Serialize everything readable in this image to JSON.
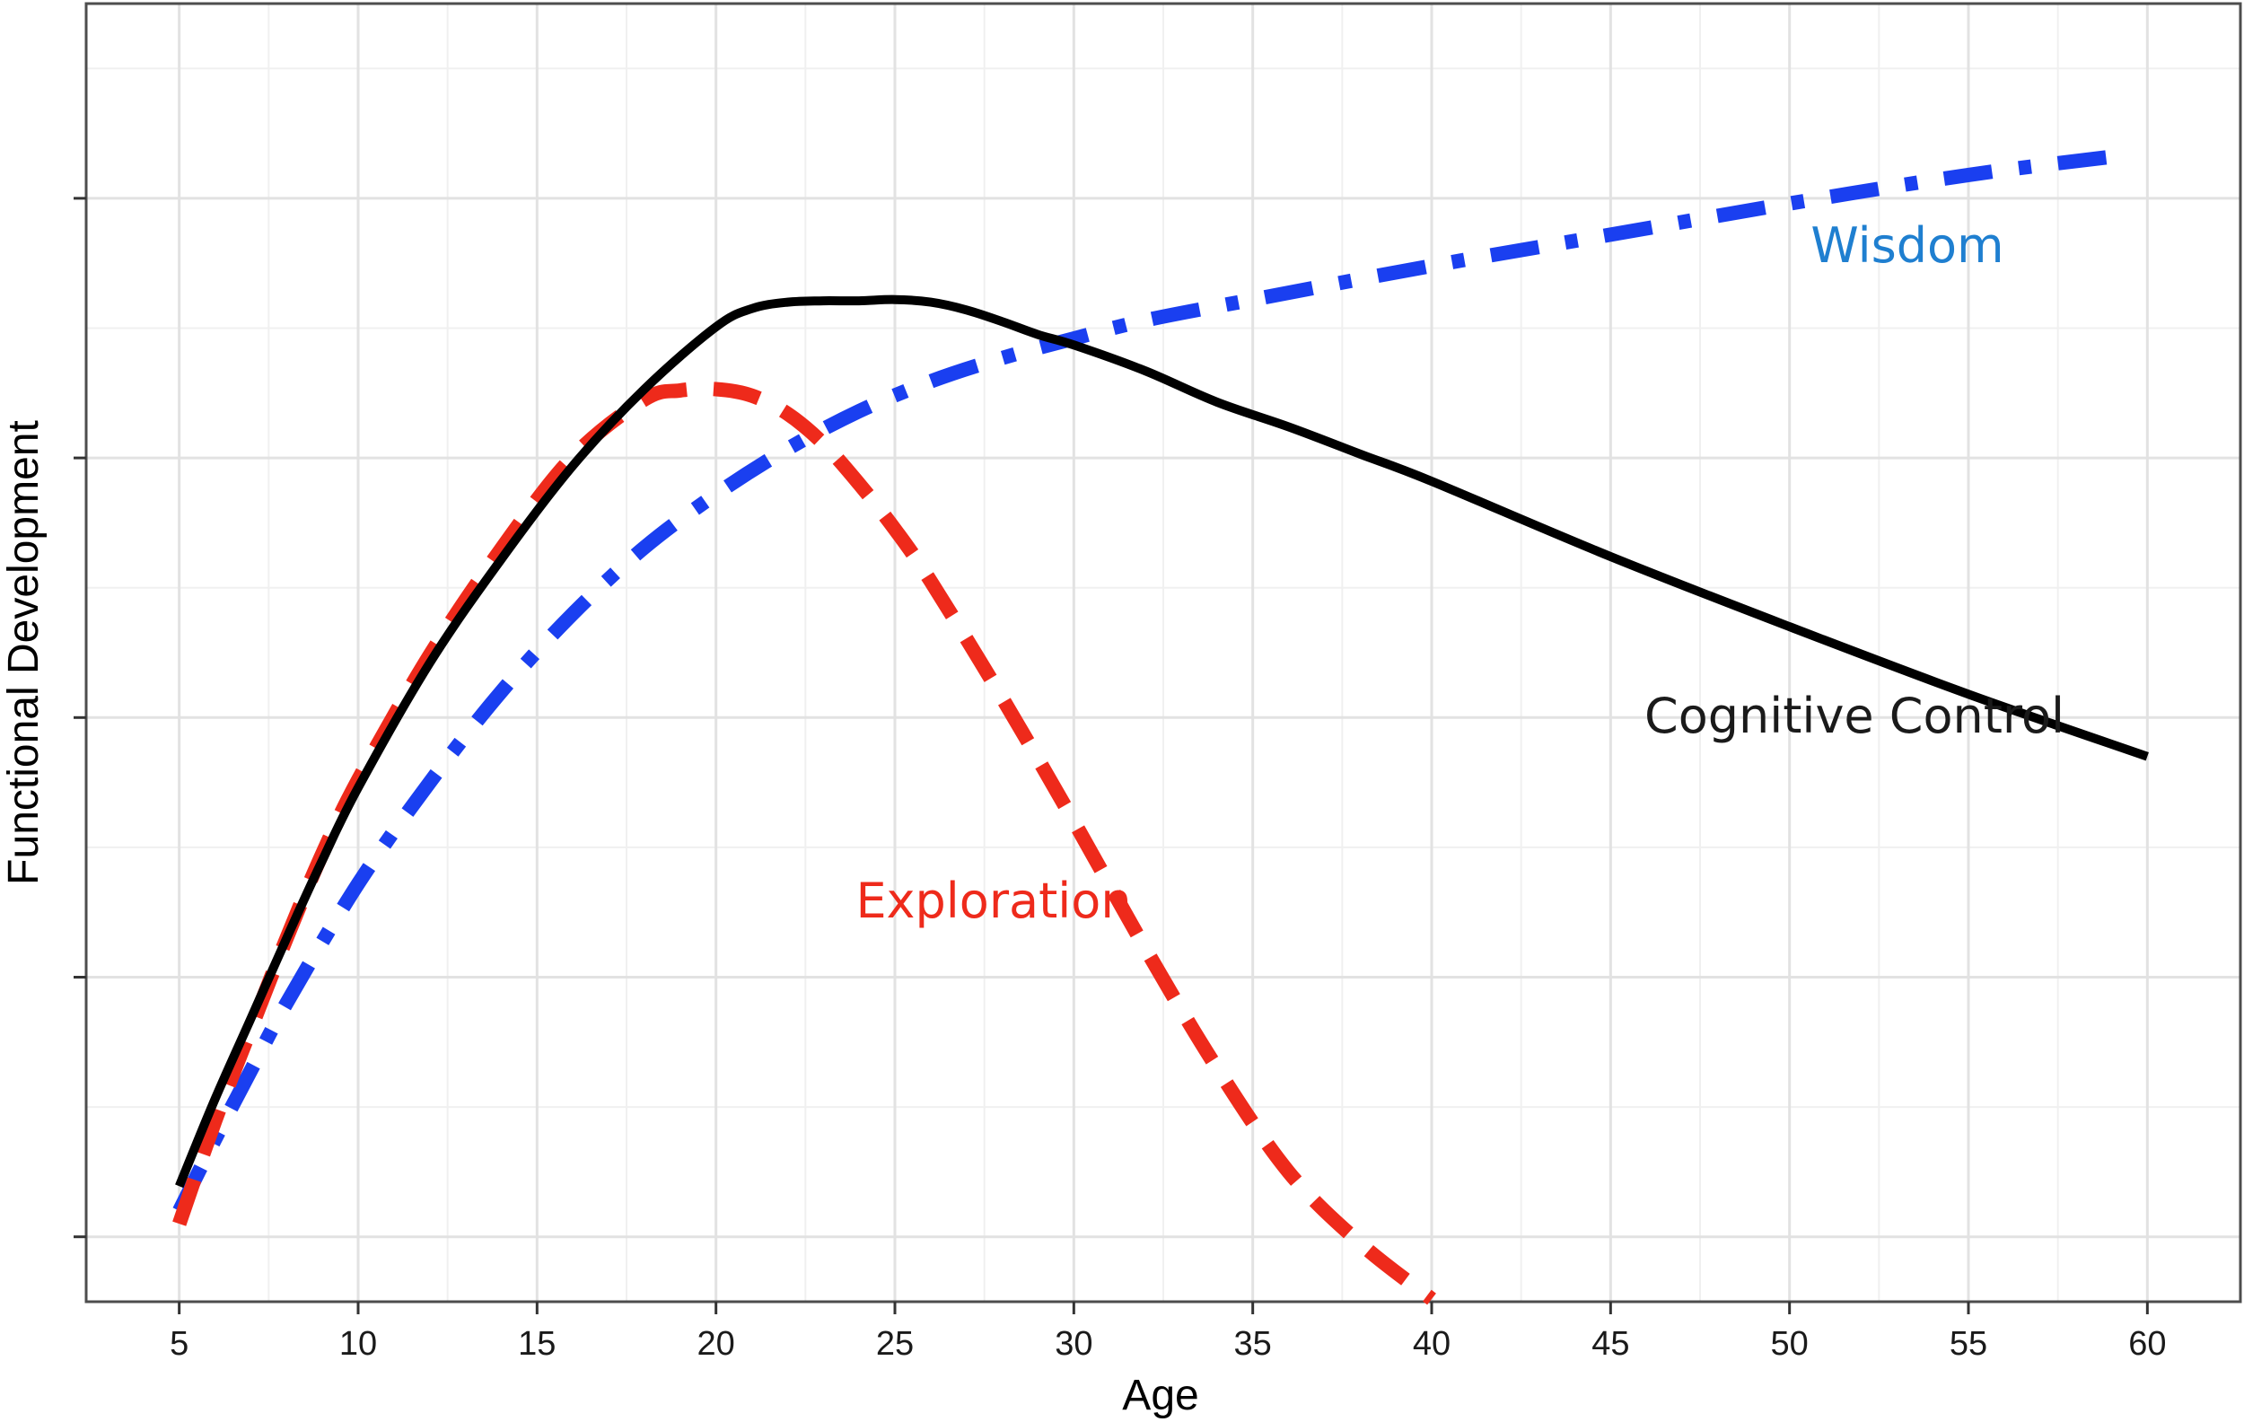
{
  "chart_data": {
    "type": "line",
    "title": "",
    "xlabel": "Age",
    "ylabel": "Functional Development",
    "xlim": [
      2.4,
      62.6
    ],
    "ylim": [
      0,
      10
    ],
    "x_ticks": [
      5,
      10,
      15,
      20,
      25,
      30,
      35,
      40,
      45,
      50,
      55,
      60
    ],
    "x_tick_labels": [
      "5",
      "10",
      "15",
      "20",
      "25",
      "30",
      "35",
      "40",
      "45",
      "50",
      "55",
      "60"
    ],
    "y_ticks": [
      0.5,
      2.5,
      4.5,
      6.5,
      8.5
    ],
    "y_tick_labels": [
      "",
      "",
      "",
      "",
      ""
    ],
    "grid": true,
    "legend": "none",
    "series": [
      {
        "name": "Cognitive Control",
        "color": "#000000",
        "style": "solid",
        "x": [
          5,
          6,
          7,
          8,
          9,
          10,
          12,
          14,
          16,
          18,
          20,
          21,
          22,
          23,
          24,
          25,
          26,
          27,
          28,
          29,
          30,
          32,
          34,
          36,
          38,
          40,
          45,
          50,
          55,
          60
        ],
        "y": [
          0.89,
          1.56,
          2.18,
          2.8,
          3.4,
          3.96,
          4.92,
          5.72,
          6.44,
          7.03,
          7.51,
          7.65,
          7.7,
          7.71,
          7.71,
          7.72,
          7.7,
          7.64,
          7.55,
          7.45,
          7.37,
          7.17,
          6.93,
          6.74,
          6.53,
          6.32,
          5.74,
          5.2,
          4.68,
          4.2
        ]
      },
      {
        "name": "Exploration",
        "color": "#ee2a1b",
        "style": "dashed",
        "x": [
          5,
          6,
          7,
          8,
          9,
          10,
          12,
          14,
          16,
          18,
          19,
          20,
          21,
          22,
          23,
          24,
          25,
          26,
          28,
          30,
          32,
          34,
          36,
          38,
          40
        ],
        "y": [
          0.6,
          1.39,
          2.1,
          2.8,
          3.45,
          4.02,
          4.98,
          5.8,
          6.51,
          6.95,
          7.02,
          7.03,
          6.98,
          6.84,
          6.61,
          6.3,
          5.95,
          5.55,
          4.65,
          3.7,
          2.72,
          1.8,
          1.0,
          0.45,
          0.02
        ]
      },
      {
        "name": "Wisdom",
        "color": "#1a3ff0",
        "style": "dashdot",
        "x": [
          5,
          6,
          7,
          8,
          10,
          12,
          14,
          16,
          18,
          20,
          22,
          24,
          26,
          28,
          30,
          32,
          35,
          40,
          45,
          50,
          55,
          59
        ],
        "y": [
          0.7,
          1.25,
          1.78,
          2.3,
          3.22,
          4.0,
          4.7,
          5.3,
          5.81,
          6.22,
          6.57,
          6.86,
          7.09,
          7.27,
          7.42,
          7.56,
          7.72,
          7.98,
          8.22,
          8.46,
          8.68,
          8.82
        ]
      }
    ],
    "annotations": [
      {
        "text": "Wisdom",
        "series": "Wisdom",
        "color": "#1f7fd0"
      },
      {
        "text": "Cognitive Control",
        "series": "Cognitive Control",
        "color": "#1a1a1a"
      },
      {
        "text": "Exploration",
        "series": "Exploration",
        "color": "#ee2a1b"
      }
    ]
  }
}
